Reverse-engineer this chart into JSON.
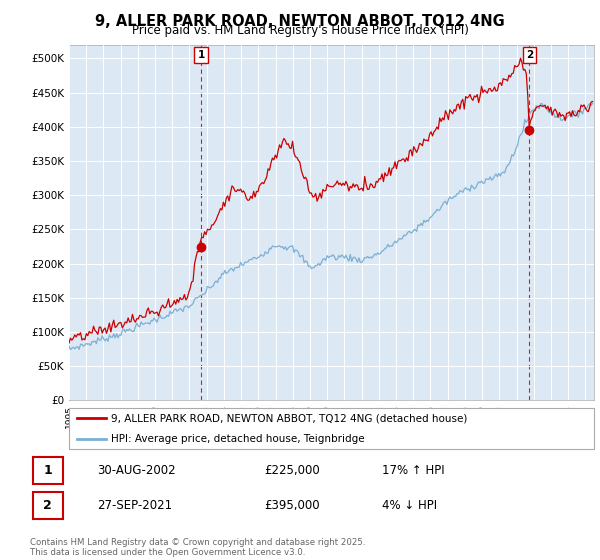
{
  "title": "9, ALLER PARK ROAD, NEWTON ABBOT, TQ12 4NG",
  "subtitle": "Price paid vs. HM Land Registry's House Price Index (HPI)",
  "ylabel_ticks": [
    "£0",
    "£50K",
    "£100K",
    "£150K",
    "£200K",
    "£250K",
    "£300K",
    "£350K",
    "£400K",
    "£450K",
    "£500K"
  ],
  "ylabel_values": [
    0,
    50000,
    100000,
    150000,
    200000,
    250000,
    300000,
    350000,
    400000,
    450000,
    500000
  ],
  "ylim": [
    0,
    520000
  ],
  "hpi_color": "#7bafd4",
  "price_color": "#cc0000",
  "vline_color": "#cc0000",
  "background_color": "#ffffff",
  "chart_bg_color": "#dce9f5",
  "grid_color": "#ffffff",
  "legend_label_red": "9, ALLER PARK ROAD, NEWTON ABBOT, TQ12 4NG (detached house)",
  "legend_label_blue": "HPI: Average price, detached house, Teignbridge",
  "sale1_label": "1",
  "sale1_date": "30-AUG-2002",
  "sale1_price": "£225,000",
  "sale1_hpi": "17% ↑ HPI",
  "sale2_label": "2",
  "sale2_date": "27-SEP-2021",
  "sale2_price": "£395,000",
  "sale2_hpi": "4% ↓ HPI",
  "copyright": "Contains HM Land Registry data © Crown copyright and database right 2025.\nThis data is licensed under the Open Government Licence v3.0.",
  "sale1_year": 2002.667,
  "sale2_year": 2021.75,
  "sale1_marker_price": 225000,
  "sale2_marker_price": 395000,
  "xmin": 1995,
  "xmax": 2025.5
}
